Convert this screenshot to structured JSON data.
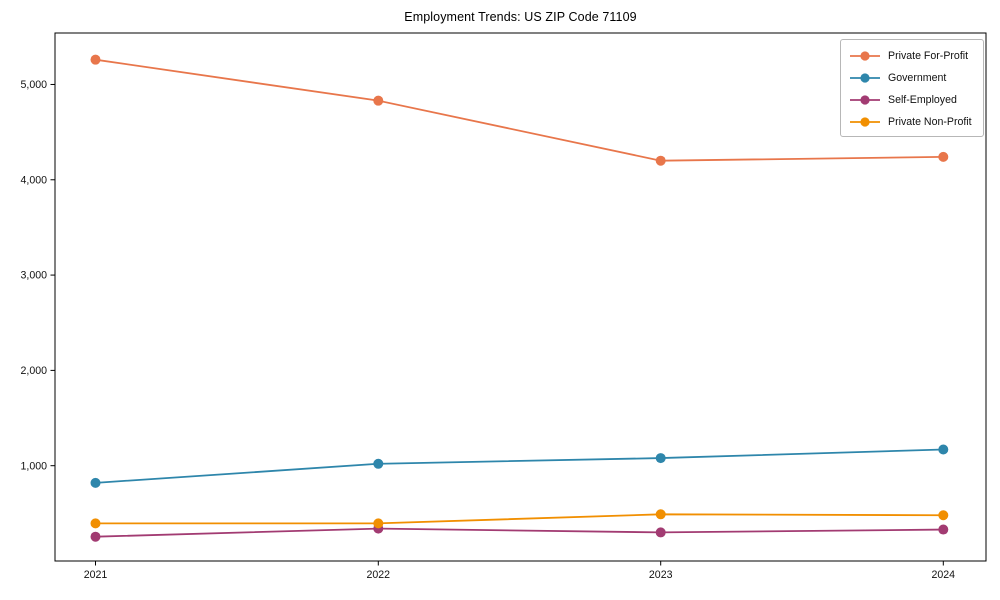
{
  "chart": {
    "title": "Employment Trends: US ZIP Code 71109"
  },
  "chart_data": {
    "type": "line",
    "title": "Employment Trends: US ZIP Code 71109",
    "xlabel": "",
    "ylabel": "",
    "x": [
      2021,
      2022,
      2023,
      2024
    ],
    "x_tick_labels": [
      "2021",
      "2022",
      "2023",
      "2024"
    ],
    "y_ticks": [
      {
        "value": 1000,
        "label": "1,000"
      },
      {
        "value": 2000,
        "label": "2,000"
      },
      {
        "value": 3000,
        "label": "3,000"
      },
      {
        "value": 4000,
        "label": "4,000"
      },
      {
        "value": 5000,
        "label": "5,000"
      }
    ],
    "ylim": [
      0,
      5540
    ],
    "grid": false,
    "legend_position": "upper right",
    "marker": "circle",
    "series": [
      {
        "name": "Private For-Profit",
        "color": "#E8764B",
        "values": [
          5260,
          4830,
          4200,
          4240
        ]
      },
      {
        "name": "Government",
        "color": "#2E86AB",
        "values": [
          820,
          1020,
          1080,
          1170
        ]
      },
      {
        "name": "Self-Employed",
        "color": "#A23B72",
        "values": [
          255,
          340,
          300,
          330
        ]
      },
      {
        "name": "Private Non-Profit",
        "color": "#F18F01",
        "values": [
          395,
          395,
          490,
          480
        ]
      }
    ]
  }
}
